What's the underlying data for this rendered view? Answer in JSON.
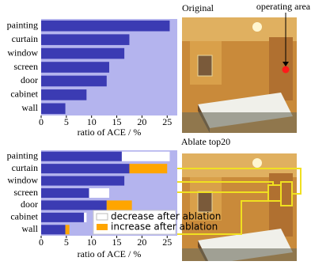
{
  "chart_data": [
    {
      "type": "bar",
      "orientation": "horizontal",
      "title": "Original",
      "annotation": "operating area",
      "categories": [
        "painting",
        "curtain",
        "window",
        "screen",
        "door",
        "cabinet",
        "wall"
      ],
      "values": [
        25.5,
        17.5,
        16.5,
        13.5,
        13,
        9,
        4.8
      ],
      "color": "#3b3bb3",
      "background": "#b4b4ee",
      "xlim": [
        0,
        27
      ],
      "xticks": [
        0,
        5,
        10,
        15,
        20,
        25
      ],
      "xlabel": "ratio of ACE / %"
    },
    {
      "type": "bar",
      "orientation": "horizontal",
      "title": "Ablate top20",
      "categories": [
        "painting",
        "curtain",
        "window",
        "screen",
        "door",
        "cabinet",
        "wall"
      ],
      "values": [
        16,
        17.5,
        16.5,
        9.5,
        13,
        8.5,
        4.8
      ],
      "color": "#3b3bb3",
      "background": "#b4b4ee",
      "series": [
        {
          "name": "decrease after ablation",
          "color": "#ffffff",
          "values": [
            9.5,
            null,
            null,
            4,
            null,
            0.5,
            null
          ]
        },
        {
          "name": "increase after ablation",
          "color": "#ffa500",
          "values": [
            null,
            7.5,
            null,
            null,
            5,
            null,
            0.8
          ]
        }
      ],
      "legend": "lower right",
      "xlim": [
        0,
        27
      ],
      "xticks": [
        0,
        5,
        10,
        15,
        20,
        25
      ],
      "xlabel": "ratio of ACE / %"
    }
  ]
}
